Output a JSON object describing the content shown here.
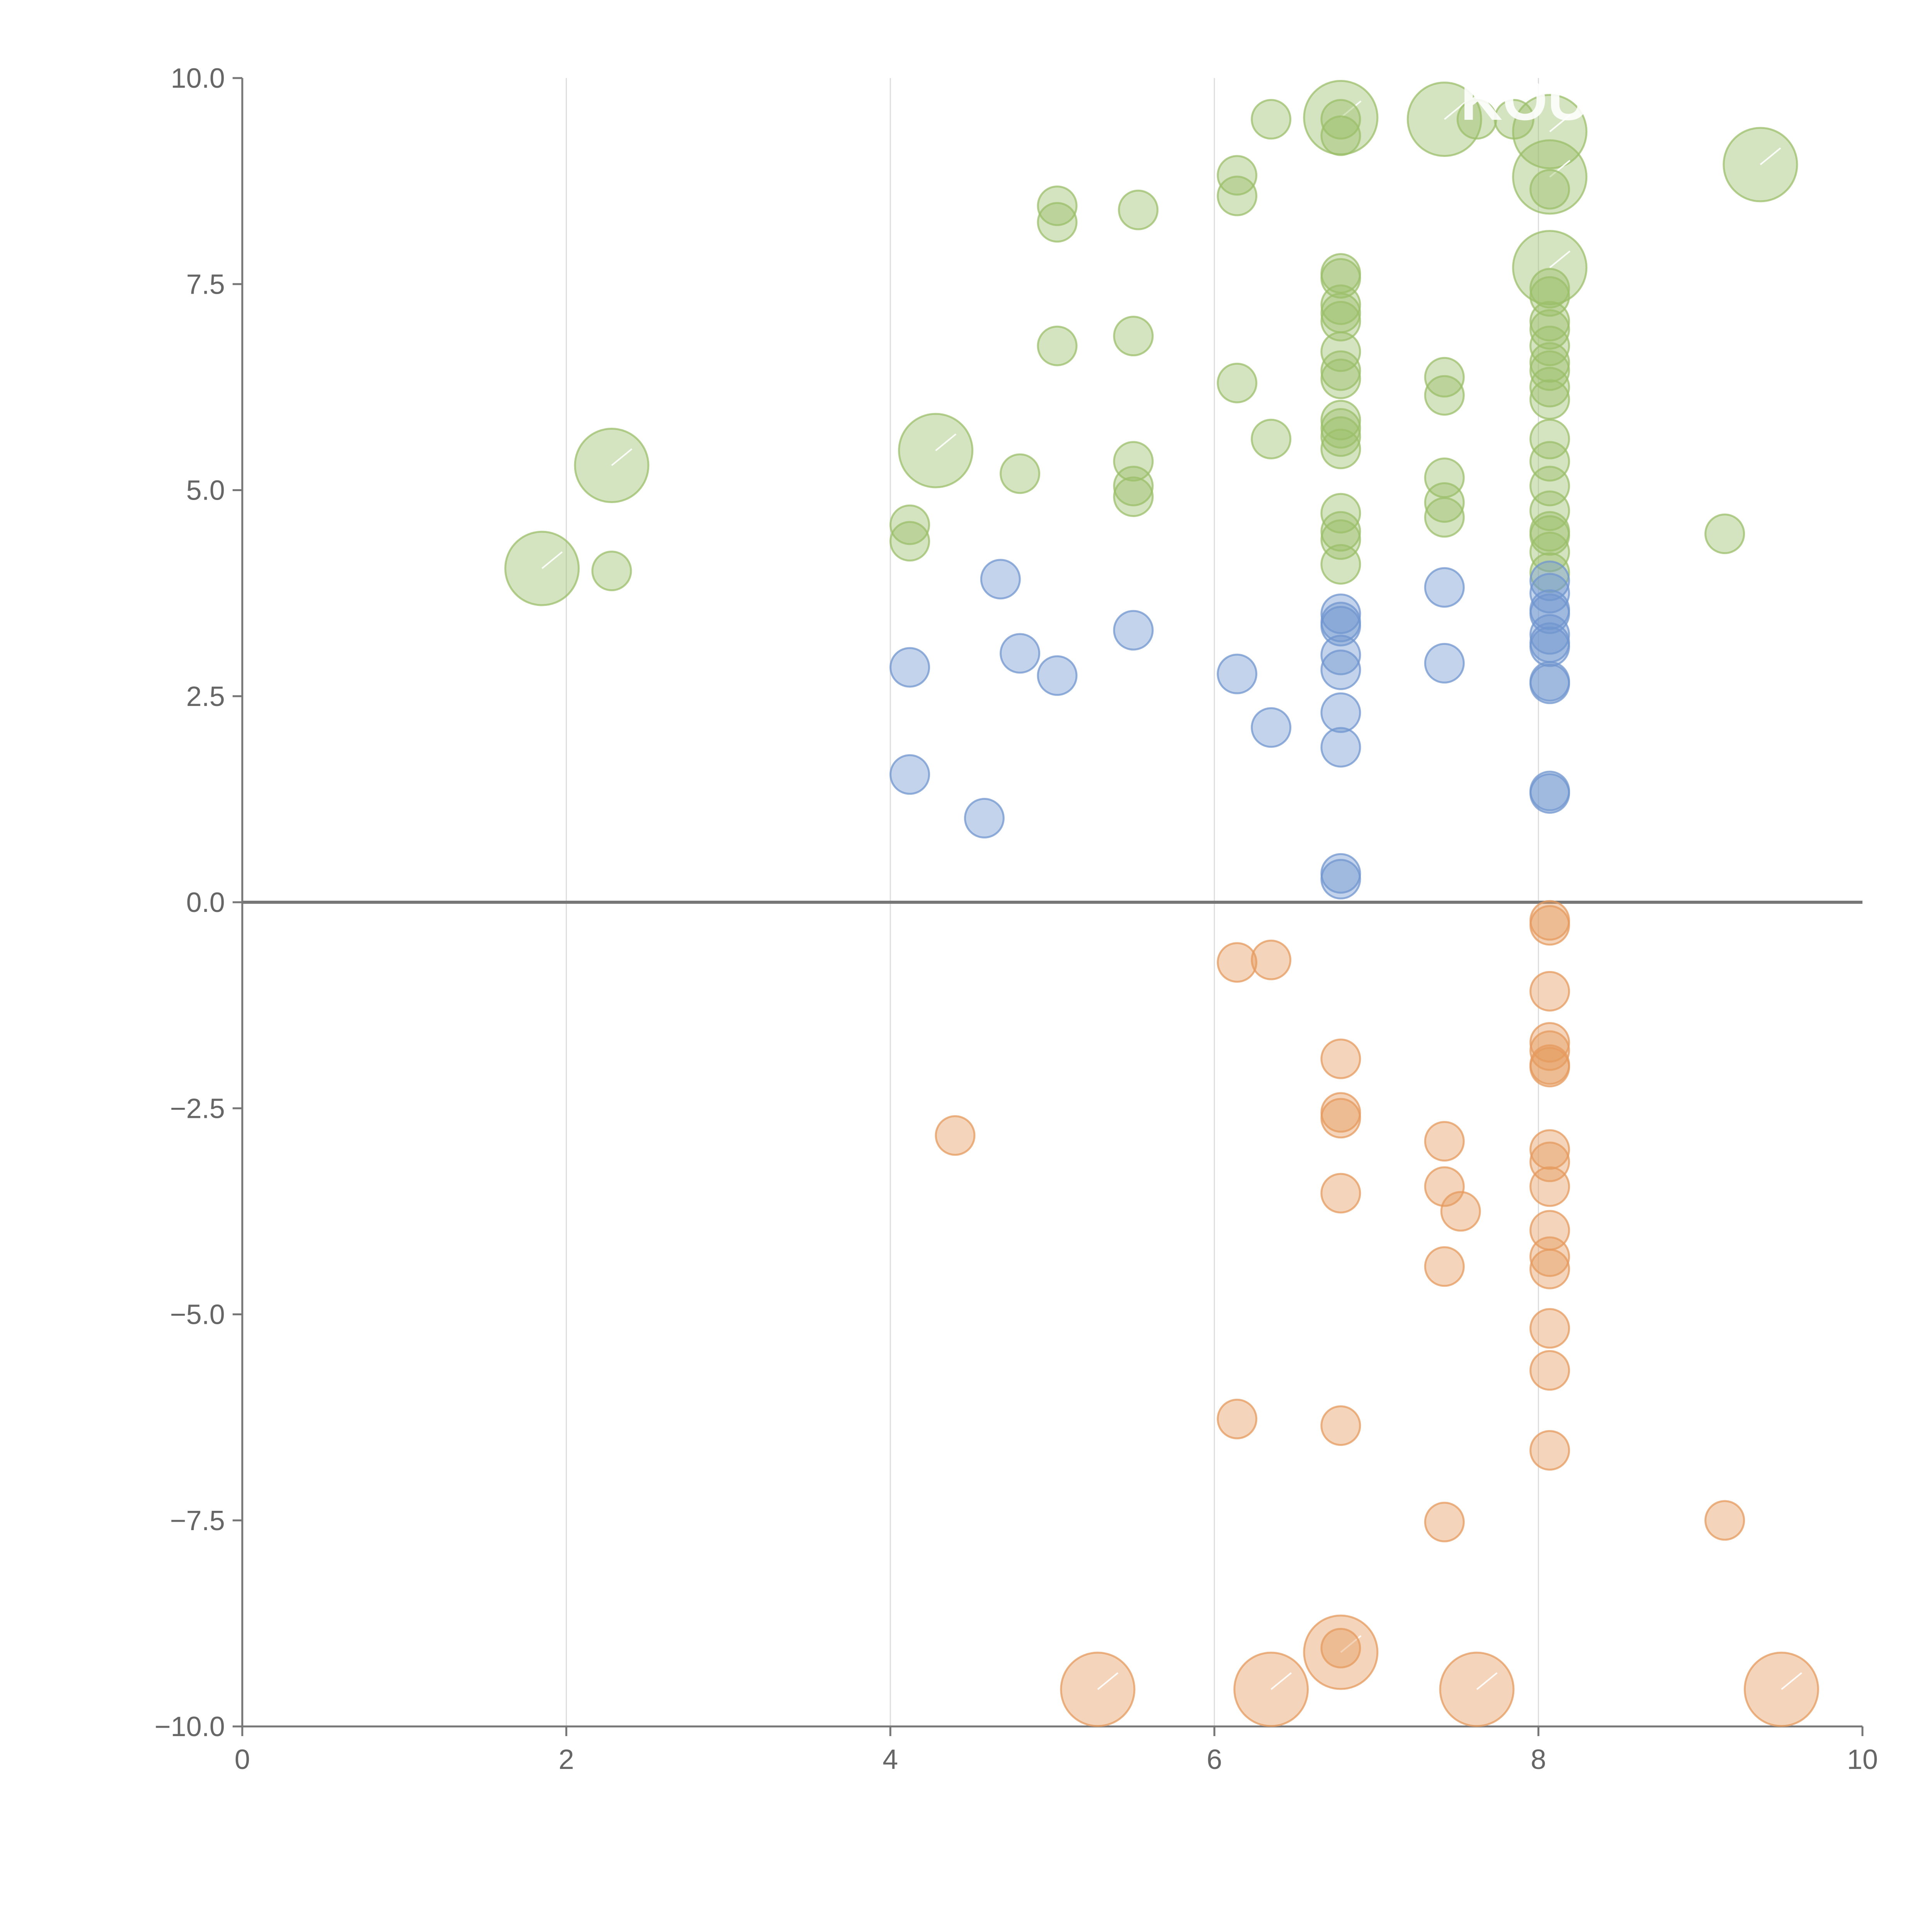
{
  "chart_data": {
    "type": "scatter",
    "title": "",
    "xlabel": "",
    "ylabel": "",
    "xlim": [
      0,
      10
    ],
    "ylim": [
      -10,
      10
    ],
    "x_ticks": [
      "0",
      "2",
      "4",
      "6",
      "8",
      "10"
    ],
    "y_ticks": [
      "10.0",
      "7.5",
      "5.0",
      "2.5",
      "0.0",
      "−2.5",
      "−5.0",
      "−7.5",
      "−10.0"
    ],
    "grid": "vertical",
    "baseline_y": 0,
    "colors": {
      "green": "#9bbf6a",
      "blue": "#7095cf",
      "orange": "#e59a5e",
      "axis": "#777777",
      "grid": "#dddddd"
    },
    "series": [
      {
        "name": "green",
        "color": "#9bbf6a",
        "points": [
          {
            "x": 1.85,
            "y": 4.05,
            "r": 3
          },
          {
            "x": 2.28,
            "y": 4.02,
            "r": 1
          },
          {
            "x": 2.28,
            "y": 5.3,
            "r": 3
          },
          {
            "x": 4.12,
            "y": 4.58,
            "r": 1
          },
          {
            "x": 4.12,
            "y": 4.38,
            "r": 1
          },
          {
            "x": 4.28,
            "y": 5.48,
            "r": 3
          },
          {
            "x": 4.8,
            "y": 5.2,
            "r": 1
          },
          {
            "x": 5.03,
            "y": 8.45,
            "r": 1
          },
          {
            "x": 5.03,
            "y": 8.25,
            "r": 1
          },
          {
            "x": 5.03,
            "y": 6.75,
            "r": 1
          },
          {
            "x": 5.5,
            "y": 6.87,
            "r": 1
          },
          {
            "x": 5.5,
            "y": 5.35,
            "r": 1
          },
          {
            "x": 5.5,
            "y": 5.05,
            "r": 1
          },
          {
            "x": 5.5,
            "y": 4.92,
            "r": 1
          },
          {
            "x": 5.53,
            "y": 8.4,
            "r": 1
          },
          {
            "x": 6.14,
            "y": 8.82,
            "r": 1
          },
          {
            "x": 6.14,
            "y": 8.57,
            "r": 1
          },
          {
            "x": 6.14,
            "y": 6.3,
            "r": 1
          },
          {
            "x": 6.35,
            "y": 9.5,
            "r": 1
          },
          {
            "x": 6.35,
            "y": 5.62,
            "r": 1
          },
          {
            "x": 6.78,
            "y": 9.52,
            "r": 3
          },
          {
            "x": 6.78,
            "y": 9.5,
            "r": 1
          },
          {
            "x": 6.78,
            "y": 9.3,
            "r": 1
          },
          {
            "x": 6.78,
            "y": 7.63,
            "r": 1
          },
          {
            "x": 6.78,
            "y": 7.57,
            "r": 1
          },
          {
            "x": 6.78,
            "y": 7.25,
            "r": 1
          },
          {
            "x": 6.78,
            "y": 7.15,
            "r": 1
          },
          {
            "x": 6.78,
            "y": 7.05,
            "r": 1
          },
          {
            "x": 6.78,
            "y": 6.68,
            "r": 1
          },
          {
            "x": 6.78,
            "y": 6.45,
            "r": 1
          },
          {
            "x": 6.78,
            "y": 6.35,
            "r": 1
          },
          {
            "x": 6.78,
            "y": 5.85,
            "r": 1
          },
          {
            "x": 6.78,
            "y": 5.75,
            "r": 1
          },
          {
            "x": 6.78,
            "y": 5.65,
            "r": 1
          },
          {
            "x": 6.78,
            "y": 5.5,
            "r": 1
          },
          {
            "x": 6.78,
            "y": 4.72,
            "r": 1
          },
          {
            "x": 6.78,
            "y": 4.5,
            "r": 1
          },
          {
            "x": 6.78,
            "y": 4.4,
            "r": 1
          },
          {
            "x": 6.78,
            "y": 4.1,
            "r": 1
          },
          {
            "x": 7.42,
            "y": 9.5,
            "r": 3
          },
          {
            "x": 7.42,
            "y": 6.37,
            "r": 1
          },
          {
            "x": 7.42,
            "y": 6.15,
            "r": 1
          },
          {
            "x": 7.42,
            "y": 5.15,
            "r": 1
          },
          {
            "x": 7.42,
            "y": 4.85,
            "r": 1
          },
          {
            "x": 7.42,
            "y": 4.67,
            "r": 1
          },
          {
            "x": 7.62,
            "y": 9.5,
            "r": 1
          },
          {
            "x": 7.85,
            "y": 9.5,
            "r": 1
          },
          {
            "x": 8.07,
            "y": 9.35,
            "r": 3
          },
          {
            "x": 8.07,
            "y": 8.8,
            "r": 3
          },
          {
            "x": 8.07,
            "y": 8.65,
            "r": 1
          },
          {
            "x": 8.07,
            "y": 7.7,
            "r": 3
          },
          {
            "x": 8.07,
            "y": 7.45,
            "r": 1
          },
          {
            "x": 8.07,
            "y": 7.35,
            "r": 1
          },
          {
            "x": 8.07,
            "y": 7.05,
            "r": 1
          },
          {
            "x": 8.07,
            "y": 6.95,
            "r": 1
          },
          {
            "x": 8.07,
            "y": 6.75,
            "r": 1
          },
          {
            "x": 8.07,
            "y": 6.55,
            "r": 1
          },
          {
            "x": 8.07,
            "y": 6.45,
            "r": 1
          },
          {
            "x": 8.07,
            "y": 6.25,
            "r": 1
          },
          {
            "x": 8.07,
            "y": 6.1,
            "r": 1
          },
          {
            "x": 8.07,
            "y": 5.62,
            "r": 1
          },
          {
            "x": 8.07,
            "y": 5.35,
            "r": 1
          },
          {
            "x": 8.07,
            "y": 5.05,
            "r": 1
          },
          {
            "x": 8.07,
            "y": 4.75,
            "r": 1
          },
          {
            "x": 8.07,
            "y": 4.5,
            "r": 1
          },
          {
            "x": 8.07,
            "y": 4.45,
            "r": 1
          },
          {
            "x": 8.07,
            "y": 4.25,
            "r": 1
          },
          {
            "x": 8.07,
            "y": 4.0,
            "r": 1
          },
          {
            "x": 9.15,
            "y": 4.47,
            "r": 1
          },
          {
            "x": 9.37,
            "y": 8.95,
            "r": 3
          }
        ]
      },
      {
        "name": "blue",
        "color": "#7095cf",
        "points": [
          {
            "x": 4.12,
            "y": 2.85,
            "r": 1
          },
          {
            "x": 4.12,
            "y": 1.55,
            "r": 1
          },
          {
            "x": 4.58,
            "y": 1.02,
            "r": 1
          },
          {
            "x": 4.68,
            "y": 3.92,
            "r": 1
          },
          {
            "x": 4.8,
            "y": 3.02,
            "r": 1
          },
          {
            "x": 5.03,
            "y": 2.75,
            "r": 1
          },
          {
            "x": 5.5,
            "y": 3.3,
            "r": 1
          },
          {
            "x": 6.14,
            "y": 2.77,
            "r": 1
          },
          {
            "x": 6.35,
            "y": 2.12,
            "r": 1
          },
          {
            "x": 6.78,
            "y": 3.5,
            "r": 1
          },
          {
            "x": 6.78,
            "y": 3.4,
            "r": 1
          },
          {
            "x": 6.78,
            "y": 3.35,
            "r": 1
          },
          {
            "x": 6.78,
            "y": 3.0,
            "r": 1
          },
          {
            "x": 6.78,
            "y": 2.82,
            "r": 1
          },
          {
            "x": 6.78,
            "y": 2.3,
            "r": 1
          },
          {
            "x": 6.78,
            "y": 1.88,
            "r": 1
          },
          {
            "x": 6.78,
            "y": 0.35,
            "r": 1
          },
          {
            "x": 6.78,
            "y": 0.28,
            "r": 1
          },
          {
            "x": 7.42,
            "y": 3.82,
            "r": 1
          },
          {
            "x": 7.42,
            "y": 2.9,
            "r": 1
          },
          {
            "x": 8.07,
            "y": 3.9,
            "r": 1
          },
          {
            "x": 8.07,
            "y": 3.75,
            "r": 1
          },
          {
            "x": 8.07,
            "y": 3.55,
            "r": 1
          },
          {
            "x": 8.07,
            "y": 3.5,
            "r": 1
          },
          {
            "x": 8.07,
            "y": 3.25,
            "r": 1
          },
          {
            "x": 8.07,
            "y": 3.15,
            "r": 1
          },
          {
            "x": 8.07,
            "y": 3.1,
            "r": 1
          },
          {
            "x": 8.07,
            "y": 2.68,
            "r": 1
          },
          {
            "x": 8.07,
            "y": 2.65,
            "r": 1
          },
          {
            "x": 8.07,
            "y": 1.35,
            "r": 1
          },
          {
            "x": 8.07,
            "y": 1.32,
            "r": 1
          }
        ]
      },
      {
        "name": "orange",
        "color": "#e59a5e",
        "points": [
          {
            "x": 4.4,
            "y": -2.83,
            "r": 1
          },
          {
            "x": 5.28,
            "y": -9.55,
            "r": 3
          },
          {
            "x": 6.14,
            "y": -0.73,
            "r": 1
          },
          {
            "x": 6.14,
            "y": -6.27,
            "r": 1
          },
          {
            "x": 6.35,
            "y": -0.7,
            "r": 1
          },
          {
            "x": 6.35,
            "y": -9.55,
            "r": 3
          },
          {
            "x": 6.78,
            "y": -1.9,
            "r": 1
          },
          {
            "x": 6.78,
            "y": -2.55,
            "r": 1
          },
          {
            "x": 6.78,
            "y": -2.62,
            "r": 1
          },
          {
            "x": 6.78,
            "y": -3.53,
            "r": 1
          },
          {
            "x": 6.78,
            "y": -6.35,
            "r": 1
          },
          {
            "x": 6.78,
            "y": -9.05,
            "r": 1
          },
          {
            "x": 6.78,
            "y": -9.1,
            "r": 3
          },
          {
            "x": 7.42,
            "y": -2.9,
            "r": 1
          },
          {
            "x": 7.42,
            "y": -3.45,
            "r": 1
          },
          {
            "x": 7.42,
            "y": -4.42,
            "r": 1
          },
          {
            "x": 7.42,
            "y": -7.52,
            "r": 1
          },
          {
            "x": 7.52,
            "y": -3.75,
            "r": 1
          },
          {
            "x": 7.62,
            "y": -9.55,
            "r": 3
          },
          {
            "x": 8.07,
            "y": -0.22,
            "r": 1
          },
          {
            "x": 8.07,
            "y": -0.28,
            "r": 1
          },
          {
            "x": 8.07,
            "y": -1.08,
            "r": 1
          },
          {
            "x": 8.07,
            "y": -1.7,
            "r": 1
          },
          {
            "x": 8.07,
            "y": -1.8,
            "r": 1
          },
          {
            "x": 8.07,
            "y": -1.97,
            "r": 1
          },
          {
            "x": 8.07,
            "y": -2.0,
            "r": 1
          },
          {
            "x": 8.07,
            "y": -3.0,
            "r": 1
          },
          {
            "x": 8.07,
            "y": -3.15,
            "r": 1
          },
          {
            "x": 8.07,
            "y": -3.45,
            "r": 1
          },
          {
            "x": 8.07,
            "y": -3.98,
            "r": 1
          },
          {
            "x": 8.07,
            "y": -4.3,
            "r": 1
          },
          {
            "x": 8.07,
            "y": -4.45,
            "r": 1
          },
          {
            "x": 8.07,
            "y": -5.17,
            "r": 1
          },
          {
            "x": 8.07,
            "y": -5.68,
            "r": 1
          },
          {
            "x": 8.07,
            "y": -6.65,
            "r": 1
          },
          {
            "x": 9.15,
            "y": -7.5,
            "r": 1
          },
          {
            "x": 9.5,
            "y": -9.55,
            "r": 3
          }
        ]
      }
    ],
    "annotations": [
      "KOU"
    ]
  }
}
